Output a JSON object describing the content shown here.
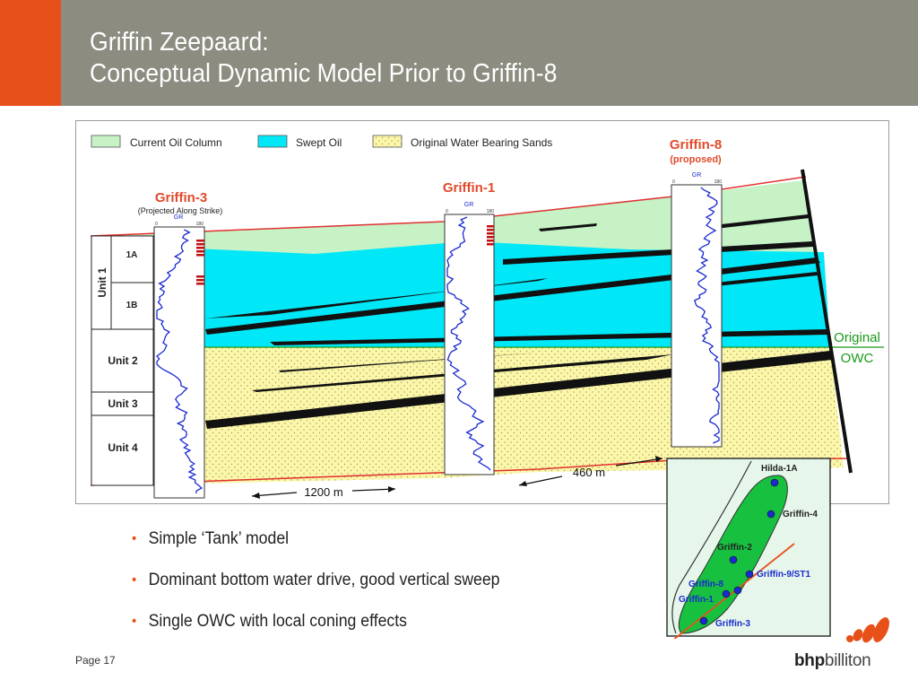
{
  "slide": {
    "title_line1": "Griffin Zeepaard:",
    "title_line2": "Conceptual Dynamic Model Prior to Griffin-8",
    "page_label": "Page 17"
  },
  "legend": {
    "current_oil": "Current Oil Column",
    "swept_oil": "Swept Oil",
    "water_sands": "Original Water Bearing Sands"
  },
  "wells": {
    "griffin3": {
      "name": "Griffin-3",
      "note": "(Projected Along Strike)"
    },
    "griffin1": {
      "name": "Griffin-1",
      "note": ""
    },
    "griffin8": {
      "name": "Griffin-8",
      "note": "(proposed)"
    },
    "gr_label": "GR",
    "gr_min": "0",
    "gr_max": "180"
  },
  "units": {
    "unit1": "Unit 1",
    "sub1a": "1A",
    "sub1b": "1B",
    "unit2": "Unit 2",
    "unit3": "Unit 3",
    "unit4": "Unit 4"
  },
  "owc": {
    "line1": "Original",
    "line2": "OWC"
  },
  "distances": {
    "d1": "1200 m",
    "d2": "460 m"
  },
  "map": {
    "hilda1a": "Hilda-1A",
    "griffin4": "Griffin-4",
    "griffin2": "Griffin-2",
    "griffin9": "Griffin-9/ST1",
    "griffin8": "Griffin-8",
    "griffin1": "Griffin-1",
    "griffin3": "Griffin-3"
  },
  "bullets": [
    "Simple ‘Tank’ model",
    "Dominant bottom water drive, good vertical sweep",
    "Single OWC with local coning effects"
  ],
  "logo": {
    "bold": "bhp",
    "rest": "billiton"
  },
  "colors": {
    "accent": "#e8501a",
    "header": "#8c8c80",
    "current_oil": "#c6f2c6",
    "swept_oil": "#00e8f8",
    "water_sands": "#fcf7a8",
    "well_label": "#e04a2a",
    "map_green": "#18c040",
    "owc_green": "#1a9a1a"
  }
}
